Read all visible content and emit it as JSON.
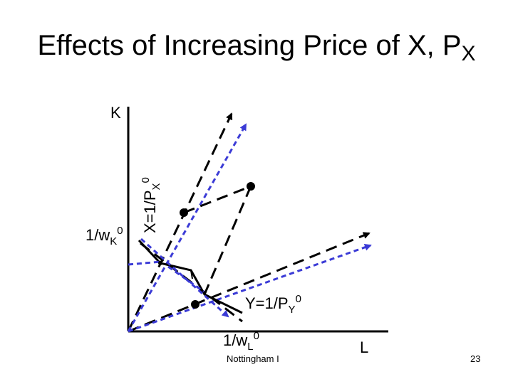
{
  "title": {
    "main": "Effects of Increasing Price of X, P",
    "sub": "X"
  },
  "axes": {
    "y_label": "K",
    "x_label": "L"
  },
  "labels": {
    "wk": {
      "base": "1/w",
      "sub": "K",
      "sup": "0"
    },
    "wl": {
      "base": "1/w",
      "sub": "L",
      "sup": "0"
    },
    "x_iso": {
      "base": "X=1/P",
      "sub": "X",
      "sup": "0"
    },
    "y_iso": {
      "base": "Y=1/P",
      "sub": "Y",
      "sup": "0"
    }
  },
  "footer": {
    "source": "Nottingham I",
    "page": "23"
  },
  "colors": {
    "black": "#000000",
    "blue": "#3b3bd6"
  }
}
